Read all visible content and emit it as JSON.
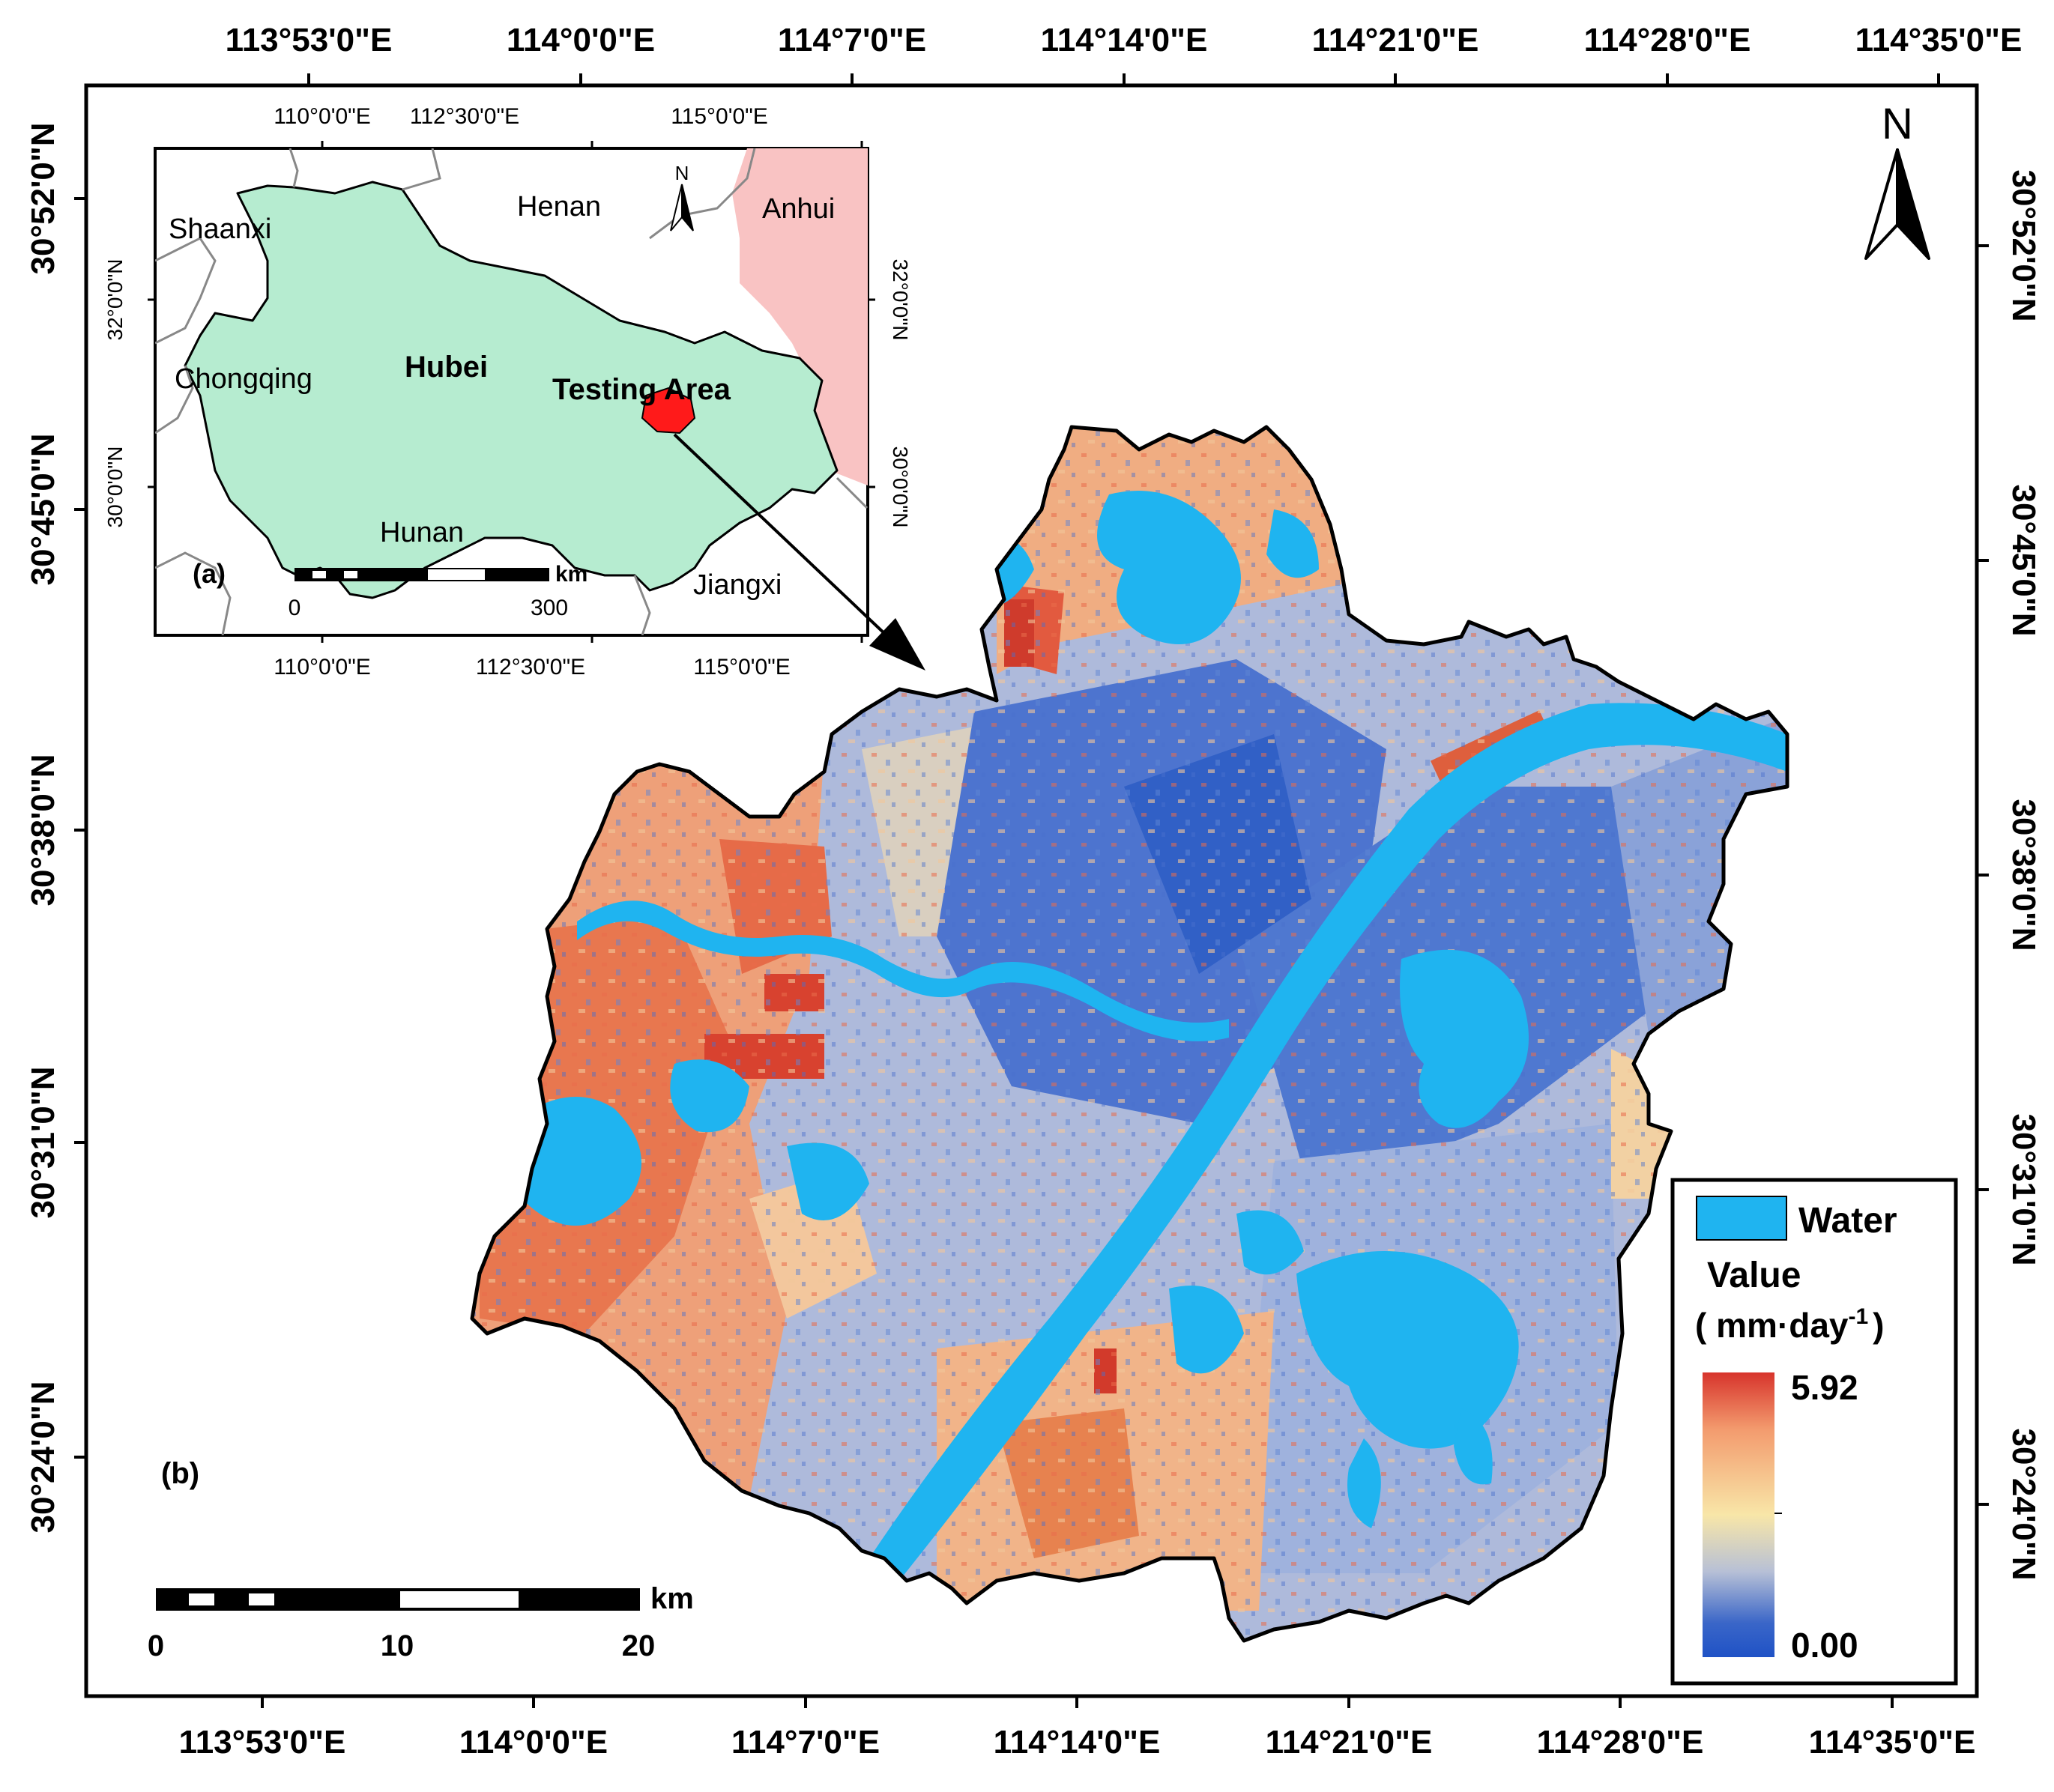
{
  "main_map": {
    "panel_label": "(b)",
    "top_lon_labels": [
      "113°53'0\"E",
      "114°0'0\"E",
      "114°7'0\"E",
      "114°14'0\"E",
      "114°21'0\"E",
      "114°28'0\"E",
      "114°35'0\"E"
    ],
    "bottom_lon_labels": [
      "113°53'0\"E",
      "114°0'0\"E",
      "114°7'0\"E",
      "114°14'0\"E",
      "114°21'0\"E",
      "114°28'0\"E",
      "114°35'0\"E"
    ],
    "left_lat_labels": [
      "30°52'0\"N",
      "30°45'0\"N",
      "30°38'0\"N",
      "30°31'0\"N",
      "30°24'0\"N"
    ],
    "right_lat_labels": [
      "30°52'0\"N",
      "30°45'0\"N",
      "30°38'0\"N",
      "30°31'0\"N",
      "30°24'0\"N"
    ],
    "north_arrow": "N",
    "scale_bar": {
      "unit": "km",
      "ticks": [
        "0",
        "10",
        "20"
      ]
    },
    "legend": {
      "water_label": "Water",
      "value_title": "Value",
      "unit_prefix": "( mm·day",
      "unit_exponent": "-1",
      "unit_suffix": ")",
      "max_label": "5.92",
      "min_label": "0.00",
      "water_color": "#1fb4f0",
      "ramp_colors": [
        "#d7342c",
        "#f39b6e",
        "#f8e6a8",
        "#b7c0d6",
        "#3a66c8",
        "#1f52c6"
      ]
    }
  },
  "inset_map": {
    "panel_label": "(a)",
    "top_lon_labels": [
      "110°0'0\"E",
      "112°30'0\"E",
      "115°0'0\"E"
    ],
    "bottom_lon_labels": [
      "110°0'0\"E",
      "112°30'0\"E",
      "115°0'0\"E"
    ],
    "left_lat_labels": [
      "32°0'0\"N",
      "30°0'0\"N"
    ],
    "right_lat_labels": [
      "32°0'0\"N",
      "30°0'0\"N"
    ],
    "provinces": [
      "Shaanxi",
      "Henan",
      "Anhui",
      "Chongqing",
      "Hubei",
      "Hunan",
      "Jiangxi"
    ],
    "highlight_label": "Testing Area",
    "north_arrow": "N",
    "scale_bar": {
      "unit": "km",
      "ticks": [
        "0",
        "300"
      ]
    },
    "colors": {
      "hubei": "#b6ecd0",
      "anhui": "#f9c3c3",
      "testing_area": "#ff1a1a"
    }
  }
}
